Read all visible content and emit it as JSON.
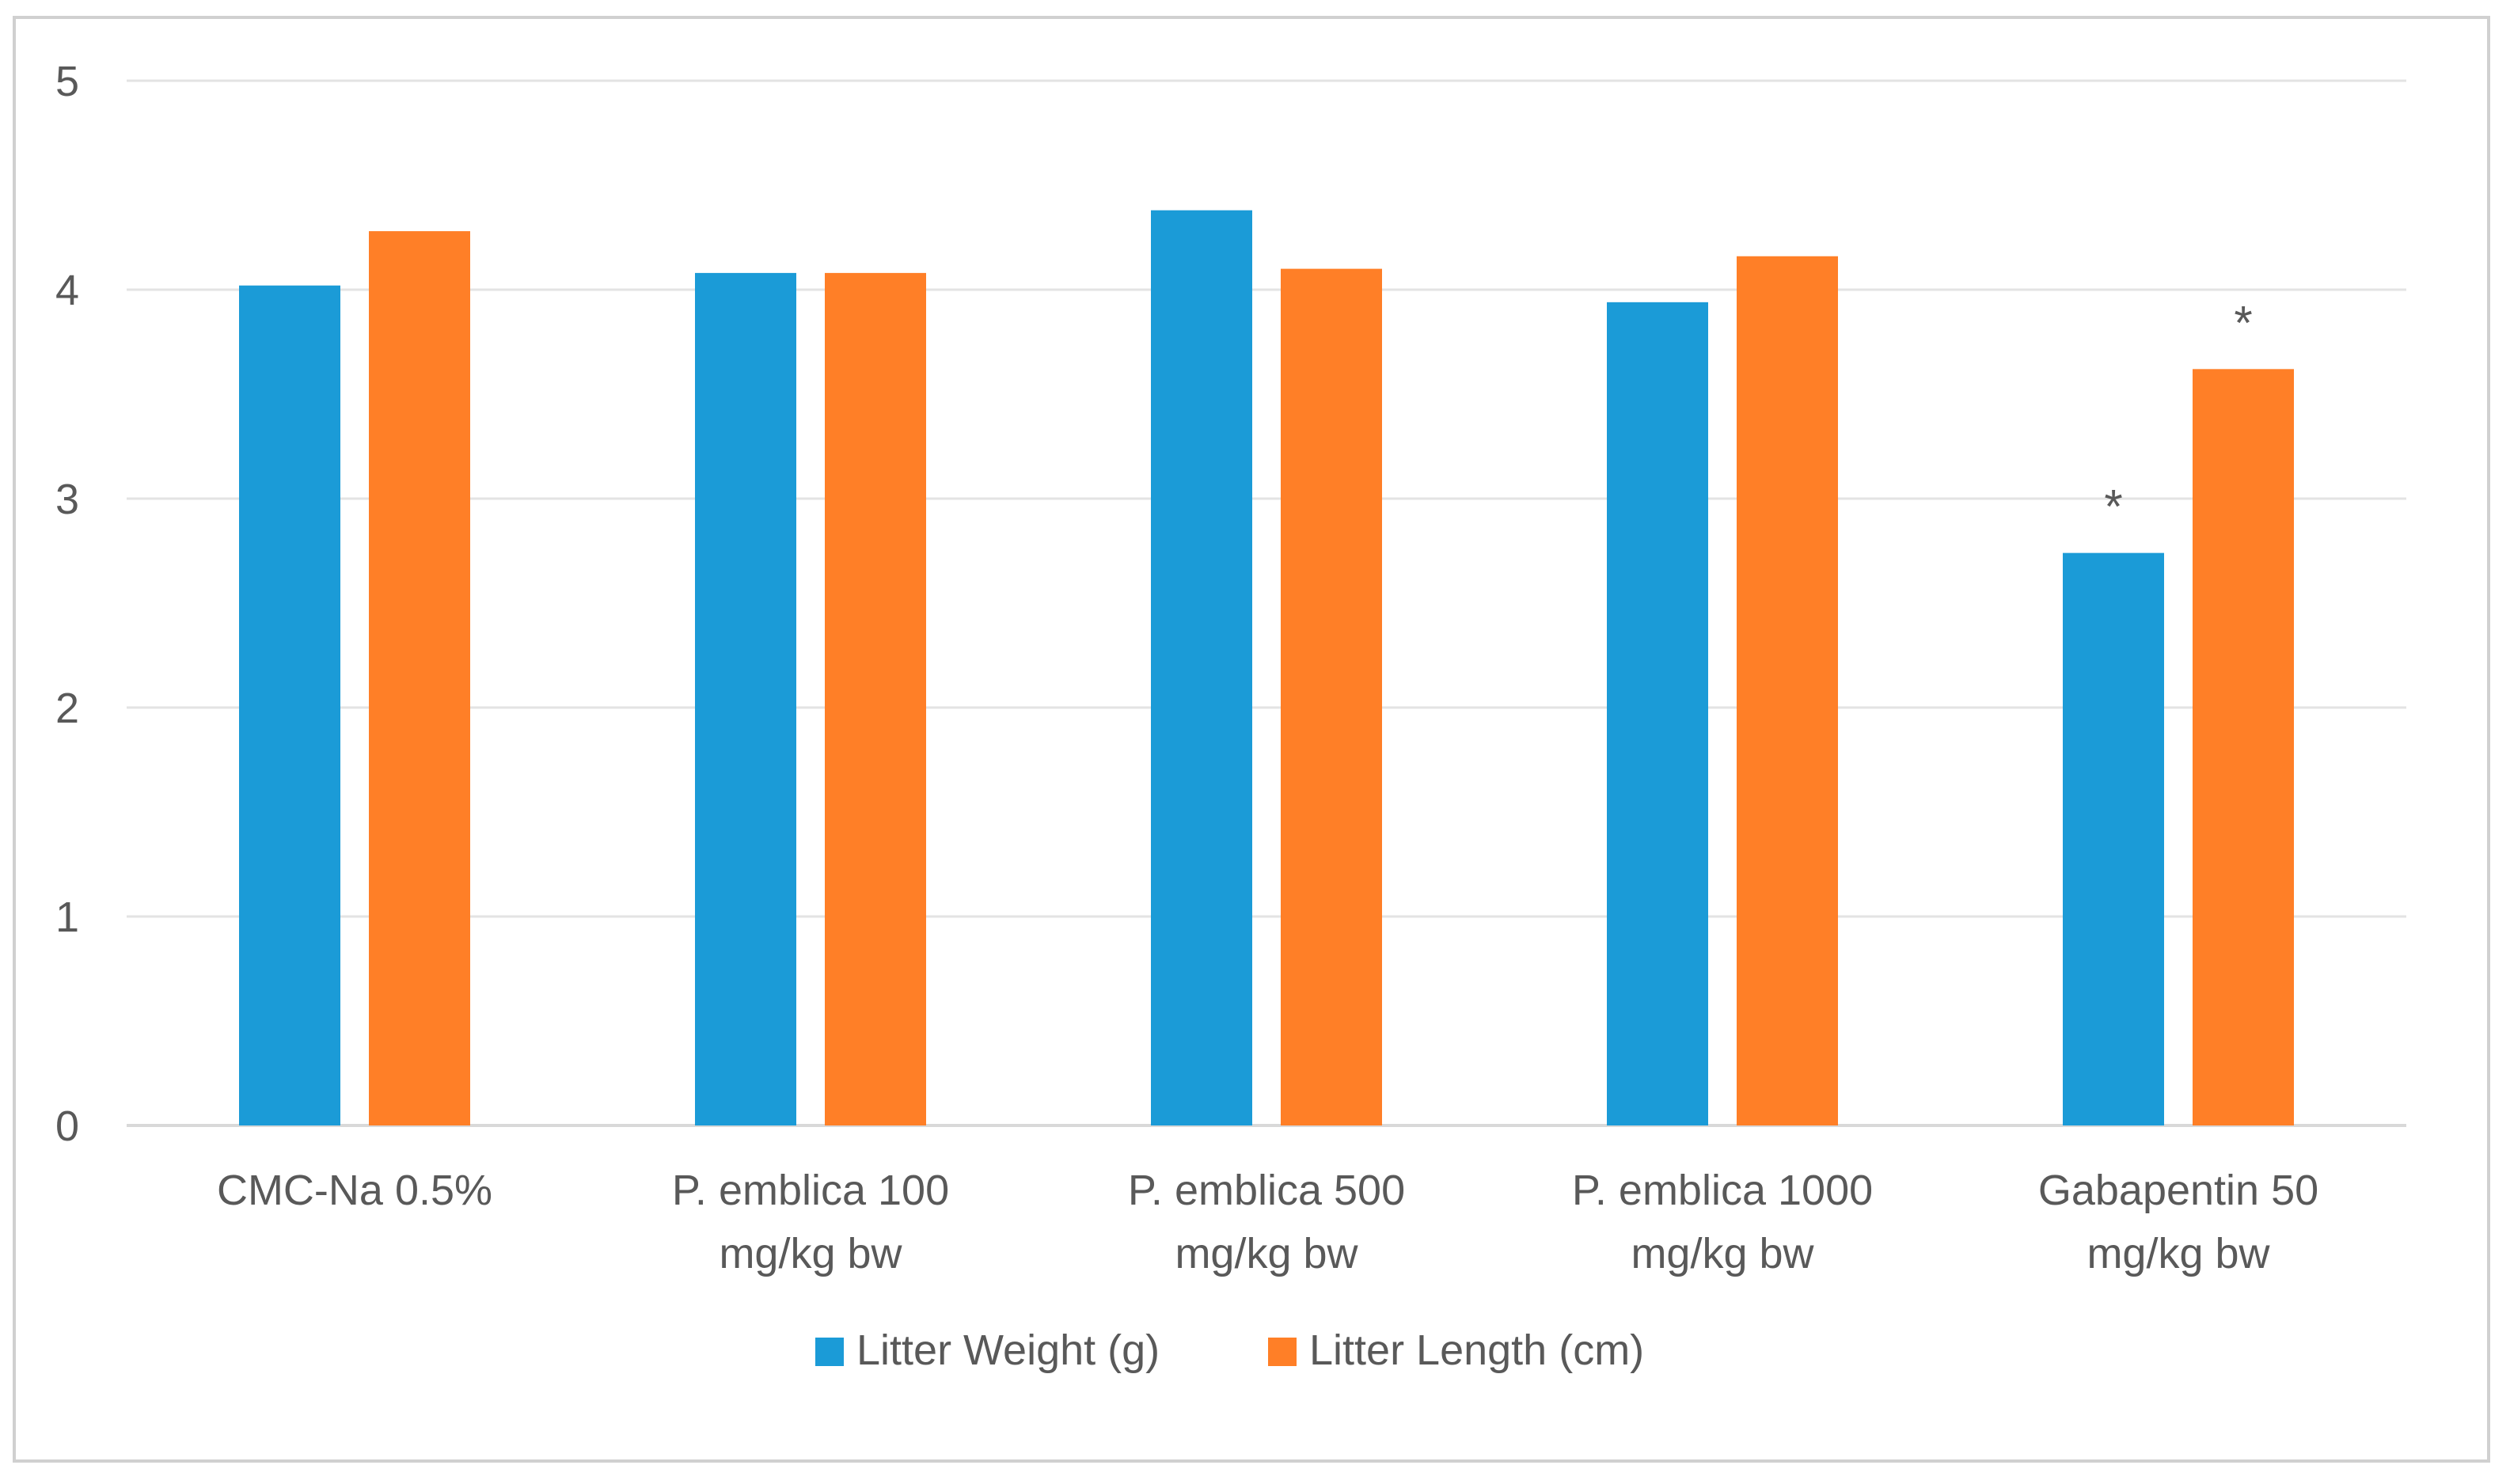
{
  "chart_data": {
    "type": "bar",
    "title": "",
    "xlabel": "",
    "ylabel": "",
    "ylim": [
      0,
      5
    ],
    "yticks": [
      0,
      1,
      2,
      3,
      4,
      5
    ],
    "grid": true,
    "legend_position": "bottom",
    "categories": [
      [
        "CMC-Na 0.5%"
      ],
      [
        "P. emblica 100",
        "mg/kg bw"
      ],
      [
        "P. emblica 500",
        "mg/kg bw"
      ],
      [
        "P. emblica 1000",
        "mg/kg bw"
      ],
      [
        "Gabapentin 50",
        "mg/kg bw"
      ]
    ],
    "series": [
      {
        "name": "Litter Weight (g)",
        "color": "#1b9bd7",
        "values": [
          4.02,
          4.08,
          4.38,
          3.94,
          2.74
        ],
        "annotations": [
          "",
          "",
          "",
          "",
          "*"
        ]
      },
      {
        "name": "Litter Length (cm)",
        "color": "#ff7f27",
        "values": [
          4.28,
          4.08,
          4.1,
          4.16,
          3.62
        ],
        "annotations": [
          "",
          "",
          "",
          "",
          "*"
        ]
      }
    ]
  }
}
